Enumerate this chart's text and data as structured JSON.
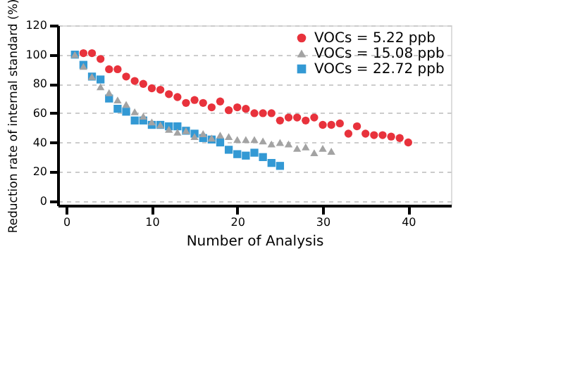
{
  "chart_data": {
    "type": "scatter",
    "xlabel": "Number of Analysis",
    "ylabel": "Reduction rate of internal standard (%)",
    "xlim": [
      -1,
      45
    ],
    "xticks": [
      0,
      10,
      20,
      30,
      40
    ],
    "ylim": [
      -3,
      120
    ],
    "yticks": [
      0,
      20,
      40,
      60,
      80,
      100,
      120
    ],
    "grid": "y",
    "legend": "top right",
    "series": [
      {
        "name": "VOCs =  5.22 ppb",
        "color": "#e8323c",
        "marker": "circle",
        "x": [
          2,
          3,
          4,
          5,
          6,
          7,
          8,
          9,
          10,
          11,
          12,
          13,
          14,
          15,
          16,
          17,
          18,
          19,
          20,
          21,
          22,
          23,
          24,
          25,
          26,
          27,
          28,
          29,
          30,
          31,
          32,
          33,
          34,
          35,
          36,
          37,
          38,
          39,
          40
        ],
        "values": [
          101,
          101,
          97,
          90,
          90,
          85,
          82,
          80,
          77,
          76,
          73,
          71,
          67,
          69,
          67,
          64,
          68,
          62,
          64,
          63,
          60,
          60,
          60,
          55,
          57,
          57,
          55,
          57,
          52,
          52,
          53,
          46,
          51,
          46,
          45,
          45,
          44,
          43,
          40
        ]
      },
      {
        "name": "VOCs = 15.08 ppb",
        "color": "#a3a3a3",
        "marker": "triangle",
        "x": [
          1,
          2,
          3,
          4,
          5,
          6,
          7,
          8,
          9,
          10,
          11,
          12,
          13,
          14,
          15,
          16,
          17,
          18,
          19,
          20,
          21,
          22,
          23,
          24,
          25,
          26,
          27,
          28,
          29,
          30,
          31
        ],
        "values": [
          100,
          92,
          85,
          78,
          74,
          69,
          66,
          61,
          58,
          54,
          52,
          49,
          47,
          48,
          44,
          46,
          43,
          45,
          44,
          42,
          42,
          42,
          41,
          39,
          40,
          39,
          36,
          37,
          33,
          36,
          34
        ]
      },
      {
        "name": "VOCs = 22.72 ppb",
        "color": "#3399d4",
        "marker": "square",
        "x": [
          1,
          2,
          3,
          4,
          5,
          6,
          7,
          8,
          9,
          10,
          11,
          12,
          13,
          14,
          15,
          16,
          17,
          18,
          19,
          20,
          21,
          22,
          23,
          24,
          25
        ],
        "values": [
          100,
          93,
          85,
          83,
          70,
          63,
          61,
          55,
          55,
          52,
          52,
          51,
          51,
          48,
          46,
          43,
          42,
          40,
          35,
          32,
          31,
          33,
          30,
          26,
          24
        ]
      }
    ]
  }
}
